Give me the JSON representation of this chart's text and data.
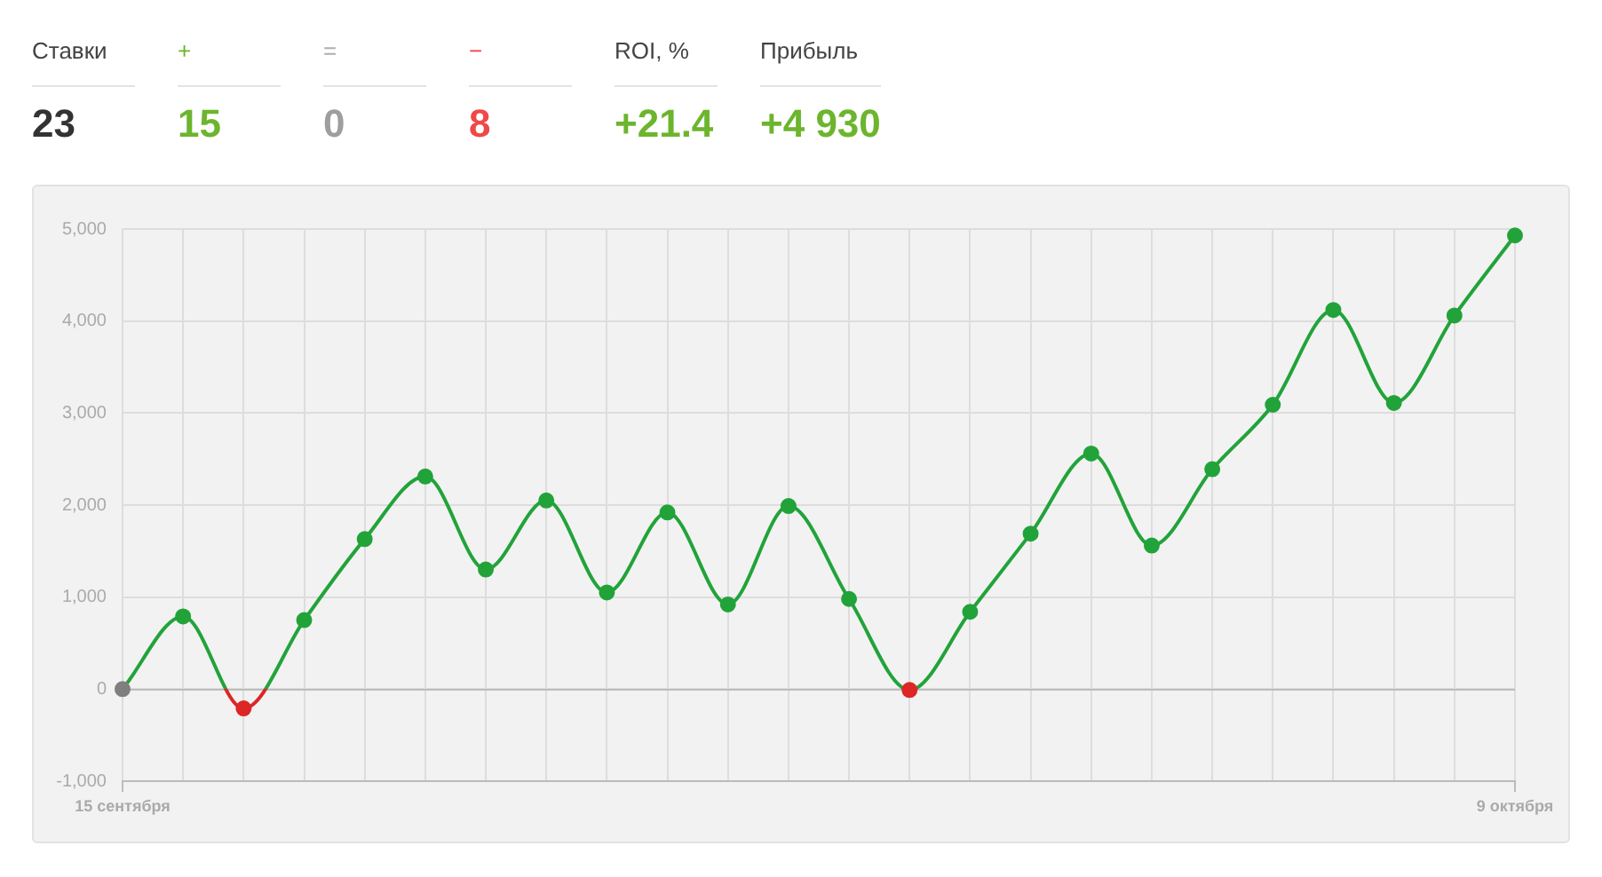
{
  "chart_data": [
    {
      "type": "other",
      "categories": [
        "Ставки",
        "+",
        "=",
        "−",
        "ROI, %",
        "Прибыль"
      ],
      "colors": [
        "#444444",
        "#6cb52d",
        "#b0b0b0",
        "#f04848",
        "#444444",
        "#444444"
      ],
      "series": [
        {
          "values": [
            23,
            15,
            0,
            8,
            21.4,
            4930
          ],
          "value_labels": [
            "23",
            "15",
            "0",
            "8",
            "+21.4",
            "+4 930"
          ],
          "colors": [
            "#333333",
            "#6cb52d",
            "#9e9e9e",
            "#f04848",
            "#6cb52d",
            "#6cb52d"
          ]
        }
      ]
    },
    {
      "type": "line",
      "categories": [
        "15 сентября",
        null,
        null,
        null,
        null,
        null,
        null,
        null,
        null,
        null,
        null,
        null,
        null,
        null,
        null,
        null,
        null,
        null,
        null,
        null,
        null,
        null,
        null,
        "9 октября"
      ],
      "series": [
        {
          "color": "#22a33a",
          "values": [
            0,
            790,
            -210,
            750,
            1630,
            2310,
            1300,
            2050,
            1050,
            1920,
            920,
            1990,
            980,
            -10,
            840,
            1690,
            2560,
            1560,
            2390,
            3090,
            4120,
            3110,
            4060,
            4930
          ],
          "colors": [
            "#7f7f7f",
            "#22a33a",
            "#dd2626",
            "#22a33a",
            "#22a33a",
            "#22a33a",
            "#22a33a",
            "#22a33a",
            "#22a33a",
            "#22a33a",
            "#22a33a",
            "#22a33a",
            "#22a33a",
            "#dd2626",
            "#22a33a",
            "#22a33a",
            "#22a33a",
            "#22a33a",
            "#22a33a",
            "#22a33a",
            "#22a33a",
            "#22a33a",
            "#22a33a",
            "#22a33a"
          ]
        }
      ],
      "ylim": [
        -1000,
        5000
      ],
      "yticks": [
        {
          "value": -1000,
          "label": "-1,000"
        },
        0,
        {
          "value": 1000,
          "label": "1,000"
        },
        {
          "value": 2000,
          "label": "2,000"
        },
        {
          "value": 3000,
          "label": "3,000"
        },
        {
          "value": 4000,
          "label": "4,000"
        },
        {
          "value": 5000,
          "label": "5,000"
        }
      ],
      "grid": true,
      "marker": "circle",
      "line_style": "solid",
      "ref_lines": [
        {
          "axis": "y",
          "value": 0,
          "color": "#bdbdbd"
        }
      ]
    }
  ]
}
